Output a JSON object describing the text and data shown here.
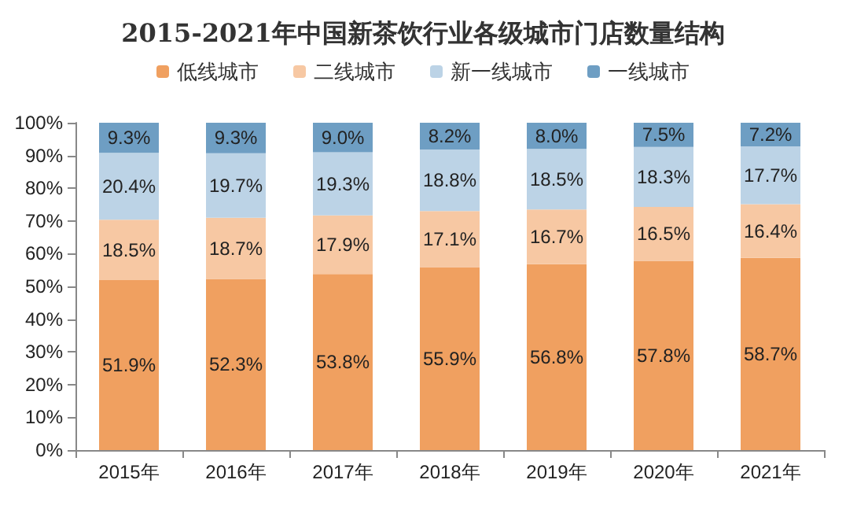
{
  "chart_data": {
    "type": "bar",
    "title": "2015-2021年中国新茶饮行业各级城市门店数量结构",
    "stacked": true,
    "legend": "top",
    "grid": false,
    "categories": [
      "2015年",
      "2016年",
      "2017年",
      "2018年",
      "2019年",
      "2020年",
      "2021年"
    ],
    "series": [
      {
        "name": "低线城市",
        "color": "#f0a060",
        "values": [
          51.9,
          52.3,
          53.8,
          55.9,
          56.8,
          57.8,
          58.7
        ],
        "value_labels": [
          "51.9%",
          "52.3%",
          "53.8%",
          "55.9%",
          "56.8%",
          "57.8%",
          "58.7%"
        ]
      },
      {
        "name": "二线城市",
        "color": "#f7c8a3",
        "values": [
          18.5,
          18.7,
          17.9,
          17.1,
          16.7,
          16.5,
          16.4
        ],
        "value_labels": [
          "18.5%",
          "18.7%",
          "17.9%",
          "17.1%",
          "16.7%",
          "16.5%",
          "16.4%"
        ]
      },
      {
        "name": "新一线城市",
        "color": "#bcd3e6",
        "values": [
          20.4,
          19.7,
          19.3,
          18.8,
          18.5,
          18.3,
          17.7
        ],
        "value_labels": [
          "20.4%",
          "19.7%",
          "19.3%",
          "18.8%",
          "18.5%",
          "18.3%",
          "17.7%"
        ]
      },
      {
        "name": "一线城市",
        "color": "#6e9ec3",
        "values": [
          9.3,
          9.3,
          9.0,
          8.2,
          8.0,
          7.5,
          7.2
        ],
        "value_labels": [
          "9.3%",
          "9.3%",
          "9.0%",
          "8.2%",
          "8.0%",
          "7.5%",
          "7.2%"
        ]
      }
    ],
    "ylim": [
      0,
      100
    ],
    "yticks": [
      {
        "value": 0,
        "label": "0%"
      },
      {
        "value": 10,
        "label": "10%"
      },
      {
        "value": 20,
        "label": "20%"
      },
      {
        "value": 30,
        "label": "30%"
      },
      {
        "value": 40,
        "label": "40%"
      },
      {
        "value": 50,
        "label": "50%"
      },
      {
        "value": 60,
        "label": "60%"
      },
      {
        "value": 70,
        "label": "70%"
      },
      {
        "value": 80,
        "label": "80%"
      },
      {
        "value": 90,
        "label": "90%"
      },
      {
        "value": 100,
        "label": "100%"
      }
    ]
  }
}
